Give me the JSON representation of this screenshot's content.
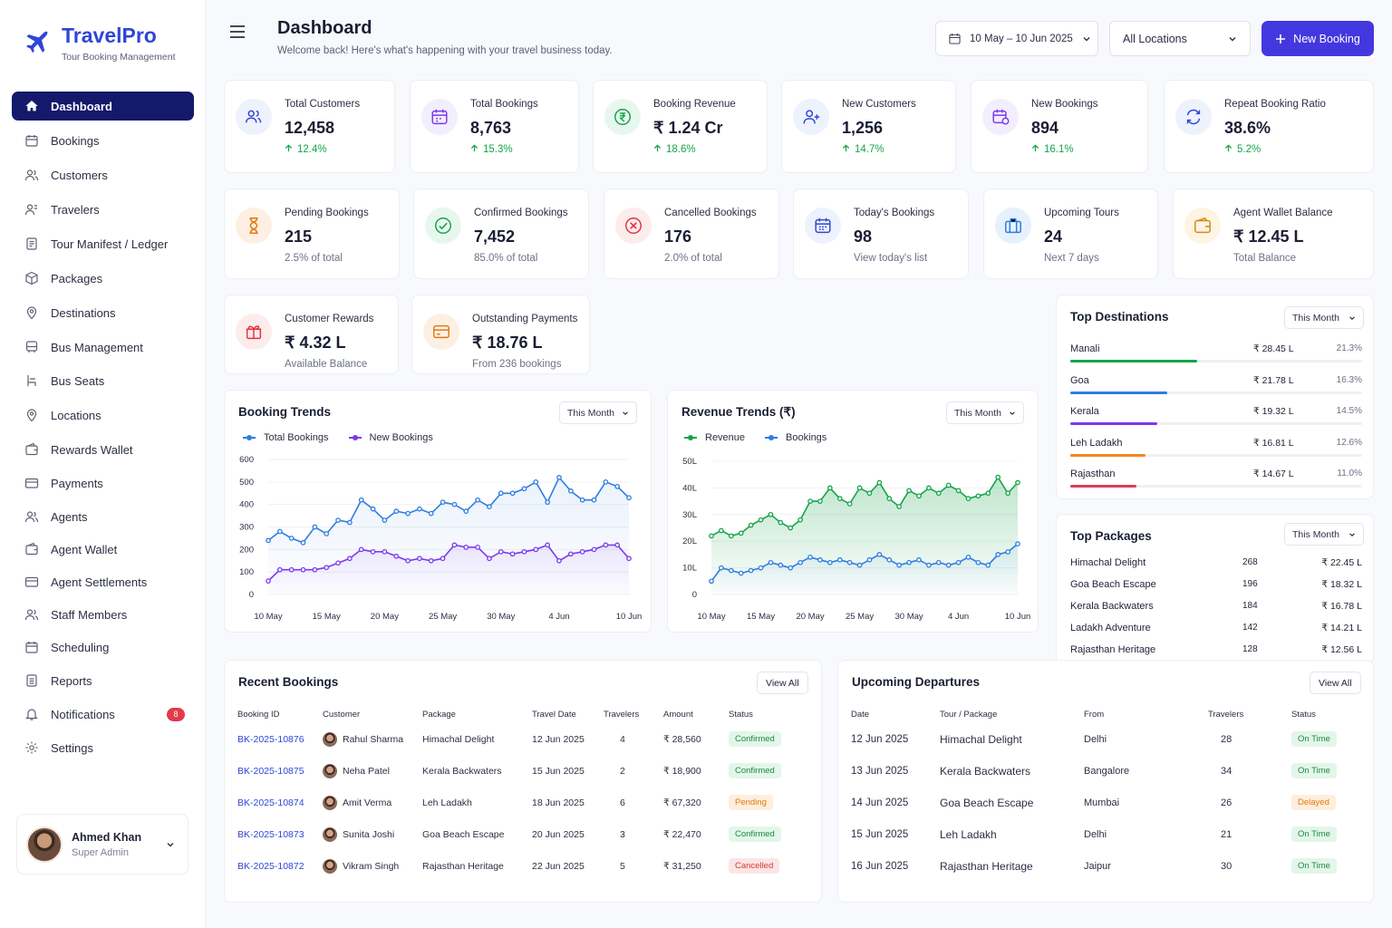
{
  "brand": {
    "name": "TravelPro",
    "tagline": "Tour Booking Management"
  },
  "sidebar": {
    "items": [
      {
        "label": "Dashboard"
      },
      {
        "label": "Bookings"
      },
      {
        "label": "Customers"
      },
      {
        "label": "Travelers"
      },
      {
        "label": "Tour Manifest / Ledger"
      },
      {
        "label": "Packages"
      },
      {
        "label": "Destinations"
      },
      {
        "label": "Bus Management"
      },
      {
        "label": "Bus Seats"
      },
      {
        "label": "Locations"
      },
      {
        "label": "Rewards Wallet"
      },
      {
        "label": "Payments"
      },
      {
        "label": "Agents"
      },
      {
        "label": "Agent Wallet"
      },
      {
        "label": "Agent Settlements"
      },
      {
        "label": "Staff Members"
      },
      {
        "label": "Scheduling"
      },
      {
        "label": "Reports"
      },
      {
        "label": "Notifications"
      },
      {
        "label": "Settings"
      }
    ],
    "notifications_badge": "8"
  },
  "user": {
    "name": "Ahmed Khan",
    "role": "Super Admin"
  },
  "header": {
    "title": "Dashboard",
    "subtitle": "Welcome back! Here's what's happening with your travel business today.",
    "date_range": "10 May – 10 Jun 2025",
    "location": "All Locations",
    "new_booking": "New Booking"
  },
  "stats_row1": [
    {
      "label": "Total Customers",
      "value": "12,458",
      "change": "12.4%"
    },
    {
      "label": "Total Bookings",
      "value": "8,763",
      "change": "15.3%"
    },
    {
      "label": "Booking Revenue",
      "value": "₹ 1.24 Cr",
      "change": "18.6%"
    },
    {
      "label": "New Customers",
      "value": "1,256",
      "change": "14.7%"
    },
    {
      "label": "New Bookings",
      "value": "894",
      "change": "16.1%"
    },
    {
      "label": "Repeat Booking Ratio",
      "value": "38.6%",
      "change": "5.2%"
    }
  ],
  "stats_row2": [
    {
      "label": "Pending Bookings",
      "value": "215",
      "sub": "2.5% of total"
    },
    {
      "label": "Confirmed Bookings",
      "value": "7,452",
      "sub": "85.0% of total"
    },
    {
      "label": "Cancelled Bookings",
      "value": "176",
      "sub": "2.0% of total"
    },
    {
      "label": "Today's Bookings",
      "value": "98",
      "sub": "View today's list"
    },
    {
      "label": "Upcoming Tours",
      "value": "24",
      "sub": "Next 7 days"
    },
    {
      "label": "Agent Wallet Balance",
      "value": "₹ 12.45 L",
      "sub": "Total Balance"
    }
  ],
  "stats_row3": [
    {
      "label": "Customer Rewards",
      "value": "₹ 4.32 L",
      "sub": "Available Balance"
    },
    {
      "label": "Outstanding Payments",
      "value": "₹ 18.76 L",
      "sub": "From 236 bookings"
    }
  ],
  "booking_trends": {
    "title": "Booking Trends",
    "filter": "This Month"
  },
  "revenue_trends": {
    "title": "Revenue Trends (₹)",
    "filter": "This Month"
  },
  "top_destinations": {
    "title": "Top Destinations",
    "filter": "This Month",
    "items": [
      {
        "name": "Manali",
        "amount": "₹ 28.45 L",
        "pct": "21.3%",
        "share": 0.213,
        "color": "#16a34a"
      },
      {
        "name": "Goa",
        "amount": "₹ 21.78 L",
        "pct": "16.3%",
        "share": 0.163,
        "color": "#2f7de1"
      },
      {
        "name": "Kerala",
        "amount": "₹ 19.32 L",
        "pct": "14.5%",
        "share": 0.145,
        "color": "#7c3aed"
      },
      {
        "name": "Leh Ladakh",
        "amount": "₹ 16.81 L",
        "pct": "12.6%",
        "share": 0.126,
        "color": "#f08a1c"
      },
      {
        "name": "Rajasthan",
        "amount": "₹ 14.67 L",
        "pct": "11.0%",
        "share": 0.11,
        "color": "#e23b5a"
      }
    ]
  },
  "top_packages": {
    "title": "Top Packages",
    "filter": "This Month",
    "items": [
      {
        "name": "Himachal Delight",
        "count": "268",
        "amount": "₹ 22.45 L"
      },
      {
        "name": "Goa Beach Escape",
        "count": "196",
        "amount": "₹ 18.32 L"
      },
      {
        "name": "Kerala Backwaters",
        "count": "184",
        "amount": "₹ 16.78 L"
      },
      {
        "name": "Ladakh Adventure",
        "count": "142",
        "amount": "₹ 14.21 L"
      },
      {
        "name": "Rajasthan Heritage",
        "count": "128",
        "amount": "₹ 12.56 L"
      }
    ]
  },
  "recent_bookings": {
    "title": "Recent Bookings",
    "view_all": "View All",
    "columns": [
      "Booking ID",
      "Customer",
      "Package",
      "Travel Date",
      "Travelers",
      "Amount",
      "Status"
    ],
    "rows": [
      {
        "id": "BK-2025-10876",
        "customer": "Rahul Sharma",
        "package": "Himachal Delight",
        "date": "12 Jun 2025",
        "travelers": "4",
        "amount": "₹ 28,560",
        "status": "Confirmed"
      },
      {
        "id": "BK-2025-10875",
        "customer": "Neha Patel",
        "package": "Kerala Backwaters",
        "date": "15 Jun 2025",
        "travelers": "2",
        "amount": "₹ 18,900",
        "status": "Confirmed"
      },
      {
        "id": "BK-2025-10874",
        "customer": "Amit Verma",
        "package": "Leh Ladakh",
        "date": "18 Jun 2025",
        "travelers": "6",
        "amount": "₹ 67,320",
        "status": "Pending"
      },
      {
        "id": "BK-2025-10873",
        "customer": "Sunita Joshi",
        "package": "Goa Beach Escape",
        "date": "20 Jun 2025",
        "travelers": "3",
        "amount": "₹ 22,470",
        "status": "Confirmed"
      },
      {
        "id": "BK-2025-10872",
        "customer": "Vikram Singh",
        "package": "Rajasthan Heritage",
        "date": "22 Jun 2025",
        "travelers": "5",
        "amount": "₹ 31,250",
        "status": "Cancelled"
      }
    ]
  },
  "upcoming_departures": {
    "title": "Upcoming Departures",
    "view_all": "View All",
    "columns": [
      "Date",
      "Tour / Package",
      "From",
      "Travelers",
      "Status"
    ],
    "rows": [
      {
        "date": "12 Jun 2025",
        "tour": "Himachal Delight",
        "from": "Delhi",
        "travelers": "28",
        "status": "On Time"
      },
      {
        "date": "13 Jun 2025",
        "tour": "Kerala Backwaters",
        "from": "Bangalore",
        "travelers": "34",
        "status": "On Time"
      },
      {
        "date": "14 Jun 2025",
        "tour": "Goa Beach Escape",
        "from": "Mumbai",
        "travelers": "26",
        "status": "Delayed"
      },
      {
        "date": "15 Jun 2025",
        "tour": "Leh Ladakh",
        "from": "Delhi",
        "travelers": "21",
        "status": "On Time"
      },
      {
        "date": "16 Jun 2025",
        "tour": "Rajasthan Heritage",
        "from": "Jaipur",
        "travelers": "30",
        "status": "On Time"
      }
    ]
  },
  "chart_data": [
    {
      "type": "line",
      "title": "Booking Trends",
      "x": [
        "10 May",
        "11 May",
        "12 May",
        "13 May",
        "14 May",
        "15 May",
        "16 May",
        "17 May",
        "18 May",
        "19 May",
        "20 May",
        "21 May",
        "22 May",
        "23 May",
        "24 May",
        "25 May",
        "26 May",
        "27 May",
        "28 May",
        "29 May",
        "30 May",
        "31 May",
        "1 Jun",
        "2 Jun",
        "3 Jun",
        "4 Jun",
        "5 Jun",
        "6 Jun",
        "7 Jun",
        "8 Jun",
        "9 Jun",
        "10 Jun"
      ],
      "x_tick_labels": [
        "10 May",
        "15 May",
        "20 May",
        "25 May",
        "30 May",
        "4 Jun",
        "10 Jun"
      ],
      "y_ticks": [
        "0",
        "100",
        "200",
        "300",
        "400",
        "500",
        "600"
      ],
      "ylim": [
        0,
        600
      ],
      "legend": "top-left",
      "series": [
        {
          "name": "Total Bookings",
          "color": "#2f7de1",
          "values": [
            240,
            280,
            250,
            230,
            300,
            270,
            330,
            320,
            420,
            380,
            330,
            370,
            360,
            380,
            360,
            410,
            400,
            370,
            420,
            390,
            450,
            450,
            470,
            500,
            410,
            520,
            460,
            420,
            420,
            500,
            480,
            430
          ]
        },
        {
          "name": "New Bookings",
          "color": "#7c3aed",
          "values": [
            60,
            110,
            110,
            110,
            110,
            120,
            140,
            160,
            200,
            190,
            190,
            170,
            150,
            160,
            150,
            160,
            220,
            210,
            210,
            160,
            190,
            180,
            190,
            200,
            220,
            150,
            180,
            190,
            200,
            220,
            220,
            160
          ]
        }
      ]
    },
    {
      "type": "area",
      "title": "Revenue Trends (₹)",
      "x": [
        "10 May",
        "11 May",
        "12 May",
        "13 May",
        "14 May",
        "15 May",
        "16 May",
        "17 May",
        "18 May",
        "19 May",
        "20 May",
        "21 May",
        "22 May",
        "23 May",
        "24 May",
        "25 May",
        "26 May",
        "27 May",
        "28 May",
        "29 May",
        "30 May",
        "31 May",
        "1 Jun",
        "2 Jun",
        "3 Jun",
        "4 Jun",
        "5 Jun",
        "6 Jun",
        "7 Jun",
        "8 Jun",
        "9 Jun",
        "10 Jun"
      ],
      "x_tick_labels": [
        "10 May",
        "15 May",
        "20 May",
        "25 May",
        "30 May",
        "4 Jun",
        "10 Jun"
      ],
      "y_ticks": [
        "0",
        "10L",
        "20L",
        "30L",
        "40L",
        "50L"
      ],
      "ylim": [
        0,
        50
      ],
      "legend": "top-left",
      "series": [
        {
          "name": "Revenue",
          "color": "#16a34a",
          "values": [
            22,
            24,
            22,
            23,
            26,
            28,
            30,
            27,
            25,
            28,
            35,
            35,
            40,
            36,
            34,
            40,
            38,
            42,
            36,
            33,
            39,
            37,
            40,
            38,
            41,
            39,
            36,
            37,
            38,
            44,
            38,
            42
          ]
        },
        {
          "name": "Bookings",
          "color": "#2f7de1",
          "values": [
            5,
            10,
            9,
            8,
            9,
            10,
            12,
            11,
            10,
            12,
            14,
            13,
            12,
            13,
            12,
            11,
            13,
            15,
            13,
            11,
            12,
            13,
            11,
            12,
            11,
            12,
            14,
            12,
            11,
            15,
            16,
            19
          ]
        }
      ]
    }
  ]
}
